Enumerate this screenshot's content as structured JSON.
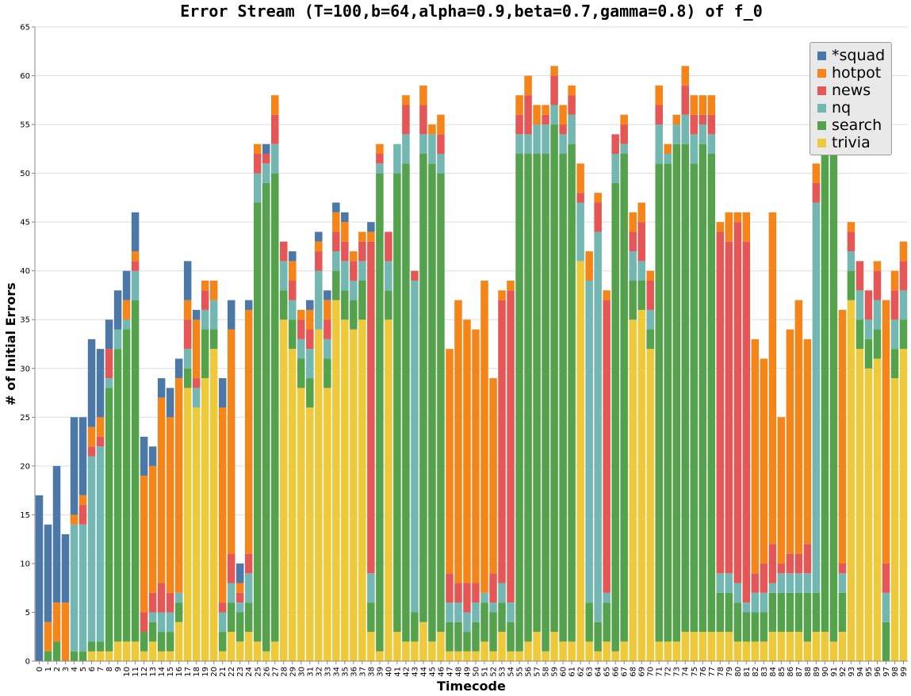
{
  "colors": {
    "*squad": "#4c78a8",
    "hotpot": "#f58518",
    "news": "#e45756",
    "nq": "#72b7b2",
    "search": "#54a24b",
    "trivia": "#eeca3b"
  },
  "chart_data": {
    "type": "bar",
    "stacked": true,
    "title": "Error Stream (T=100,b=64,alpha=0.9,beta=0.7,gamma=0.8) of f_0",
    "xlabel": "Timecode",
    "ylabel": "# of Initial Errors",
    "ylim": [
      0,
      65
    ],
    "yticks": [
      0,
      5,
      10,
      15,
      20,
      25,
      30,
      35,
      40,
      45,
      50,
      55,
      60,
      65
    ],
    "grid": true,
    "legend_position": "top-right",
    "categories": [
      "0",
      "1",
      "2",
      "3",
      "4",
      "5",
      "6",
      "7",
      "8",
      "9",
      "10",
      "11",
      "12",
      "13",
      "14",
      "15",
      "16",
      "17",
      "18",
      "19",
      "20",
      "21",
      "22",
      "23",
      "24",
      "25",
      "26",
      "27",
      "28",
      "29",
      "30",
      "31",
      "32",
      "33",
      "34",
      "35",
      "36",
      "37",
      "38",
      "39",
      "40",
      "41",
      "42",
      "43",
      "44",
      "45",
      "46",
      "47",
      "48",
      "49",
      "50",
      "51",
      "52",
      "53",
      "54",
      "55",
      "56",
      "57",
      "58",
      "59",
      "60",
      "61",
      "62",
      "63",
      "64",
      "65",
      "66",
      "67",
      "68",
      "69",
      "70",
      "71",
      "72",
      "73",
      "74",
      "75",
      "76",
      "77",
      "78",
      "79",
      "80",
      "81",
      "82",
      "83",
      "84",
      "85",
      "86",
      "87",
      "88",
      "89",
      "90",
      "91",
      "92",
      "93",
      "94",
      "95",
      "96",
      "97",
      "98",
      "99"
    ],
    "series": [
      {
        "name": "trivia",
        "values": [
          0,
          0,
          0,
          0,
          0,
          0,
          1,
          1,
          1,
          2,
          2,
          2,
          1,
          2,
          1,
          1,
          4,
          28,
          26,
          29,
          32,
          1,
          3,
          2,
          3,
          2,
          1,
          2,
          35,
          32,
          28,
          26,
          34,
          28,
          37,
          35,
          34,
          35,
          3,
          1,
          35,
          3,
          2,
          2,
          4,
          2,
          3,
          1,
          1,
          1,
          1,
          2,
          1,
          3,
          1,
          1,
          2,
          3,
          1,
          3,
          2,
          2,
          41,
          2,
          1,
          2,
          1,
          2,
          35,
          36,
          32,
          2,
          2,
          2,
          3,
          3,
          3,
          3,
          3,
          3,
          2,
          2,
          2,
          2,
          3,
          3,
          3,
          3,
          2,
          3,
          3,
          2,
          3,
          37,
          32,
          30,
          31,
          0,
          29,
          32
        ]
      },
      {
        "name": "search",
        "values": [
          0,
          1,
          2,
          0,
          1,
          1,
          1,
          1,
          27,
          30,
          32,
          35,
          2,
          2,
          2,
          2,
          2,
          2,
          0,
          5,
          2,
          2,
          3,
          3,
          3,
          45,
          48,
          48,
          3,
          3,
          3,
          3,
          0,
          3,
          3,
          3,
          3,
          4,
          3,
          49,
          3,
          47,
          49,
          3,
          48,
          49,
          47,
          3,
          3,
          2,
          3,
          4,
          4,
          3,
          3,
          51,
          50,
          49,
          51,
          52,
          50,
          51,
          0,
          4,
          3,
          4,
          48,
          50,
          4,
          3,
          2,
          49,
          49,
          51,
          50,
          48,
          50,
          49,
          4,
          4,
          4,
          3,
          3,
          3,
          4,
          4,
          4,
          4,
          5,
          4,
          50,
          51,
          4,
          3,
          3,
          3,
          3,
          4,
          3,
          3
        ]
      },
      {
        "name": "nq",
        "values": [
          0,
          0,
          0,
          0,
          13,
          13,
          19,
          20,
          1,
          2,
          1,
          3,
          0,
          1,
          2,
          2,
          1,
          2,
          2,
          2,
          3,
          2,
          2,
          1,
          3,
          3,
          2,
          3,
          3,
          2,
          2,
          3,
          6,
          2,
          2,
          3,
          2,
          2,
          3,
          1,
          3,
          3,
          3,
          34,
          2,
          3,
          2,
          2,
          2,
          2,
          2,
          1,
          1,
          2,
          2,
          2,
          2,
          3,
          3,
          2,
          2,
          3,
          6,
          33,
          40,
          1,
          3,
          1,
          3,
          2,
          2,
          4,
          1,
          2,
          3,
          3,
          2,
          2,
          2,
          2,
          2,
          1,
          2,
          2,
          1,
          2,
          2,
          2,
          2,
          40,
          3,
          3,
          2,
          2,
          3,
          2,
          3,
          3,
          3,
          3
        ]
      },
      {
        "name": "news",
        "values": [
          0,
          0,
          0,
          0,
          0,
          2,
          1,
          1,
          3,
          0,
          0,
          1,
          2,
          2,
          3,
          2,
          0,
          3,
          1,
          2,
          0,
          1,
          3,
          1,
          2,
          2,
          1,
          3,
          2,
          2,
          2,
          2,
          2,
          2,
          2,
          2,
          2,
          2,
          34,
          1,
          3,
          0,
          3,
          1,
          3,
          0,
          2,
          3,
          2,
          3,
          2,
          0,
          3,
          29,
          32,
          2,
          4,
          0,
          1,
          3,
          1,
          2,
          1,
          0,
          3,
          30,
          2,
          2,
          2,
          4,
          3,
          2,
          0,
          0,
          3,
          2,
          1,
          2,
          35,
          34,
          37,
          37,
          2,
          3,
          4,
          1,
          2,
          2,
          3,
          2,
          2,
          0,
          1,
          2,
          3,
          3,
          3,
          3,
          3,
          3
        ]
      },
      {
        "name": "hotpot",
        "values": [
          0,
          3,
          4,
          6,
          1,
          1,
          2,
          2,
          0,
          0,
          2,
          1,
          14,
          13,
          19,
          18,
          22,
          2,
          6,
          1,
          2,
          20,
          23,
          1,
          25,
          1,
          0,
          2,
          0,
          2,
          1,
          2,
          1,
          2,
          2,
          2,
          1,
          1,
          1,
          1,
          0,
          0,
          1,
          0,
          2,
          1,
          2,
          23,
          29,
          27,
          26,
          32,
          20,
          1,
          1,
          2,
          2,
          2,
          1,
          1,
          2,
          1,
          3,
          3,
          1,
          1,
          0,
          1,
          2,
          2,
          1,
          2,
          1,
          1,
          2,
          2,
          2,
          2,
          1,
          3,
          1,
          3,
          24,
          21,
          34,
          15,
          23,
          26,
          21,
          2,
          0,
          0,
          26,
          1,
          0,
          0,
          1,
          27,
          2,
          2
        ]
      },
      {
        "name": "*squad",
        "values": [
          17,
          10,
          14,
          7,
          10,
          8,
          9,
          7,
          3,
          4,
          3,
          4,
          4,
          2,
          2,
          3,
          2,
          4,
          1,
          0,
          0,
          3,
          3,
          2,
          1,
          0,
          1,
          0,
          0,
          1,
          0,
          1,
          1,
          1,
          1,
          1,
          0,
          0,
          1,
          0,
          0,
          0,
          0,
          0,
          0,
          0,
          0,
          0,
          0,
          0,
          0,
          0,
          0,
          0,
          0,
          0,
          0,
          0,
          0,
          0,
          0,
          0,
          0,
          0,
          0,
          0,
          0,
          0,
          0,
          0,
          0,
          0,
          0,
          0,
          0,
          0,
          0,
          0,
          0,
          0,
          0,
          0,
          0,
          0,
          0,
          0,
          0,
          0,
          0,
          0,
          0,
          0,
          0,
          0,
          0,
          0,
          0,
          0,
          0,
          0
        ]
      }
    ]
  }
}
